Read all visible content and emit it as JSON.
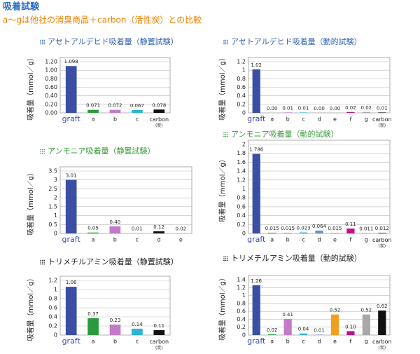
{
  "header": {
    "title": "吸着試験",
    "subtitle": "a～gは他社の消臭商品＋carbon（活性炭）との比較"
  },
  "chart_data": [
    {
      "type": "bar",
      "title": "アセトアルデヒド吸着量（静置試験）",
      "title_color": "#2f5fb0",
      "y_label": "吸着量（mmol／g）",
      "categories": [
        "graft",
        "a",
        "b",
        "c",
        "carbon (炭)"
      ],
      "values": [
        1.098,
        0.071,
        0.072,
        0.067,
        0.078
      ],
      "colors": [
        "#3a4fa3",
        "#2b9a3c",
        "#c27bc6",
        "#2fb3d3",
        "#111111"
      ],
      "ylim": [
        0,
        1.2
      ],
      "yticks": [
        {
          "value": 0,
          "label": "0.00"
        },
        {
          "value": 0.2,
          "label": "0.20"
        },
        {
          "value": 0.4,
          "label": "0.40"
        },
        {
          "value": 0.6,
          "label": "0.60"
        },
        {
          "value": 0.8,
          "label": "0.80"
        },
        {
          "value": 1,
          "label": "1.00"
        },
        {
          "value": 1.2,
          "label": "1.20"
        }
      ],
      "grid": true
    },
    {
      "type": "bar",
      "title": "アセトアルデヒド吸着量（動的試験）",
      "title_color": "#2f5fb0",
      "y_label": "吸着量（mmol／g）",
      "categories": [
        "graft",
        "a",
        "b",
        "c",
        "d",
        "e",
        "f",
        "g",
        "carbon (炭)"
      ],
      "values": [
        1.02,
        0,
        0.01,
        0.01,
        0,
        0,
        0.02,
        0.02,
        0.01
      ],
      "value_labels": [
        "1.02",
        "0.00",
        "0.01",
        "0.01",
        "0.00",
        "0.00",
        "0.02",
        "0.02",
        "0.01"
      ],
      "colors": [
        "#3a4fa3",
        "#2b9a3c",
        "#c27bc6",
        "#2fb3d3",
        "#6f8fc4",
        "#f0a020",
        "#c0108a",
        "#a8a8a8",
        "#111111"
      ],
      "ylim": [
        0,
        1.2
      ],
      "yticks": [
        0,
        0.2,
        0.4,
        0.6,
        0.8,
        1,
        1.2
      ],
      "grid": true
    },
    {
      "type": "bar",
      "title": "アンモニア吸着量（静置試験）",
      "title_color": "#3a9a3a",
      "y_label": "吸着量（mmol／g）",
      "categories": [
        "graft",
        "a",
        "b",
        "c",
        "d",
        "e"
      ],
      "values": [
        3.01,
        0.05,
        0.4,
        0.01,
        0.12,
        0.02
      ],
      "value_labels": [
        "3.01",
        "0.05",
        "0.40",
        "0.01",
        "0.12",
        "0.02"
      ],
      "colors": [
        "#3a4fa3",
        "#2b9a3c",
        "#c27bc6",
        "#2fb3d3",
        "#111111",
        "#f0a020"
      ],
      "ylim": [
        0,
        3.5
      ],
      "yticks": [
        0,
        0.5,
        1,
        1.5,
        2,
        2.5,
        3,
        3.5
      ],
      "grid": true
    },
    {
      "type": "bar",
      "title": "アンモニア吸着量（動的試験）",
      "title_color": "#3a9a3a",
      "y_label": "吸着量（mmol／g）",
      "categories": [
        "graft",
        "a",
        "b",
        "c",
        "d",
        "e",
        "f",
        "g",
        "carbon (炭)"
      ],
      "values": [
        1.786,
        0.015,
        0.015,
        0.023,
        0.064,
        0.015,
        0.11,
        0.011,
        0.012
      ],
      "colors": [
        "#3a4fa3",
        "#2b9a3c",
        "#c27bc6",
        "#2fb3d3",
        "#6f8fc4",
        "#f0a020",
        "#c0108a",
        "#a8a8a8",
        "#111111"
      ],
      "ylim": [
        0,
        2
      ],
      "yticks": [
        0,
        0.2,
        0.4,
        0.6,
        0.8,
        1,
        1.2,
        1.4,
        1.6,
        1.8,
        2
      ],
      "grid": true
    },
    {
      "type": "bar",
      "title": "トリメチルアミン吸着量（静置試験）",
      "title_color": "#222222",
      "y_label": "吸着量（mmol／g）",
      "categories": [
        "graft",
        "a",
        "b",
        "c",
        "carbon (炭)"
      ],
      "values": [
        1.06,
        0.37,
        0.23,
        0.14,
        0.11
      ],
      "colors": [
        "#3a4fa3",
        "#2b9a3c",
        "#c27bc6",
        "#2fb3d3",
        "#111111"
      ],
      "ylim": [
        0,
        1.2
      ],
      "yticks": [
        0,
        0.2,
        0.4,
        0.6,
        0.8,
        1,
        1.2
      ],
      "grid": true
    },
    {
      "type": "bar",
      "title": "トリメチルアミン吸着量（動的試験）",
      "title_color": "#222222",
      "y_label": "吸着量（mmol／g）",
      "categories": [
        "graft",
        "a",
        "b",
        "c",
        "d",
        "e",
        "f",
        "g",
        "carbon (炭)"
      ],
      "values": [
        1.26,
        0.02,
        0.41,
        0.04,
        0.01,
        0.52,
        0.1,
        0.52,
        0.62
      ],
      "value_labels": [
        "1.26",
        "0.02",
        "0.41",
        "0.04",
        "0.01",
        "0.52",
        "0.10",
        "0.52",
        "0.62"
      ],
      "colors": [
        "#3a4fa3",
        "#2b9a3c",
        "#c27bc6",
        "#2fb3d3",
        "#6f8fc4",
        "#f0a020",
        "#c0108a",
        "#a8a8a8",
        "#111111"
      ],
      "ylim": [
        0,
        1.4
      ],
      "yticks": [
        0,
        0.2,
        0.4,
        0.6,
        0.8,
        1,
        1.2,
        1.4
      ],
      "grid": true
    }
  ]
}
